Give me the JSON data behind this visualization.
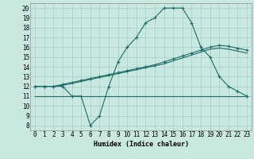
{
  "xlabel": "Humidex (Indice chaleur)",
  "bg_color": "#c8e8e0",
  "grid_color": "#a8ccc8",
  "line_color": "#1a6b6b",
  "xlim": [
    -0.5,
    23.5
  ],
  "ylim": [
    7.5,
    20.5
  ],
  "xticks": [
    0,
    1,
    2,
    3,
    4,
    5,
    6,
    7,
    8,
    9,
    10,
    11,
    12,
    13,
    14,
    15,
    16,
    17,
    18,
    19,
    20,
    21,
    22,
    23
  ],
  "yticks": [
    8,
    9,
    10,
    11,
    12,
    13,
    14,
    15,
    16,
    17,
    18,
    19,
    20
  ],
  "line1_x": [
    0,
    1,
    2,
    3,
    4,
    5,
    6,
    7,
    8,
    9,
    10,
    11,
    12,
    13,
    14,
    15,
    16,
    17,
    18,
    19,
    20,
    21,
    22,
    23
  ],
  "line1_y": [
    12,
    12,
    12,
    12,
    11,
    11,
    8,
    9,
    12,
    14.5,
    16,
    17,
    18.5,
    19,
    20,
    20,
    20,
    18.5,
    16,
    15,
    13,
    12,
    11.5,
    11
  ],
  "line2_x": [
    0,
    1,
    2,
    3,
    4,
    5,
    6,
    7,
    8,
    9,
    10,
    11,
    12,
    13,
    14,
    15,
    16,
    17,
    18,
    19,
    20,
    21,
    22,
    23
  ],
  "line2_y": [
    12,
    12,
    12,
    12.2,
    12.4,
    12.6,
    12.8,
    13.0,
    13.2,
    13.4,
    13.6,
    13.8,
    14.0,
    14.2,
    14.5,
    14.8,
    15.1,
    15.4,
    15.7,
    16.0,
    16.2,
    16.1,
    15.9,
    15.7
  ],
  "line3_x": [
    0,
    1,
    2,
    3,
    4,
    5,
    6,
    7,
    8,
    9,
    10,
    11,
    12,
    13,
    14,
    15,
    16,
    17,
    18,
    19,
    20,
    21,
    22,
    23
  ],
  "line3_y": [
    12,
    12,
    12,
    12.1,
    12.3,
    12.5,
    12.7,
    12.9,
    13.1,
    13.3,
    13.5,
    13.7,
    13.9,
    14.1,
    14.3,
    14.6,
    14.9,
    15.2,
    15.5,
    15.8,
    15.9,
    15.8,
    15.6,
    15.4
  ],
  "line4_x": [
    0,
    23
  ],
  "line4_y": [
    11,
    11
  ]
}
